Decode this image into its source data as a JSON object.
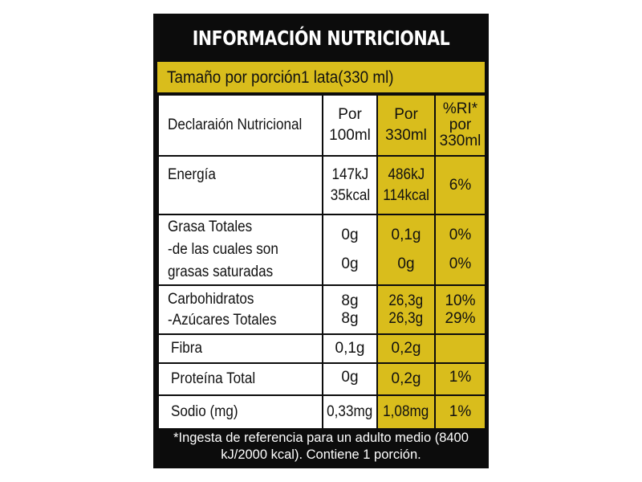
{
  "title": "INFORMACIÓN NUTRICIONAL",
  "serving": "Tamaño por porción1 lata(330 ml)",
  "header": {
    "label": "Declaraión Nutricional",
    "per100_line1": "Por",
    "per100_line2": "100ml",
    "per330_line1": "Por",
    "per330_line2": "330ml",
    "ri_line1": "%RI*",
    "ri_line2": "por",
    "ri_line3": "330ml"
  },
  "rows": {
    "energia": {
      "label": "Energía",
      "per100_1": "147kJ",
      "per100_2": "35kcal",
      "per330_1": "486kJ",
      "per330_2": "114kcal",
      "ri": "6%"
    },
    "grasa": {
      "label_1": "Grasa Totales",
      "label_2": "-de las cuales son",
      "label_3": "grasas saturadas",
      "per100_1": "0g",
      "per100_2": "0g",
      "per330_1": "0,1g",
      "per330_2": "0g",
      "ri_1": "0%",
      "ri_2": "0%"
    },
    "carbohidratos": {
      "label_1": "Carbohidratos",
      "label_2": "-Azúcares Totales",
      "per100_1": "8g",
      "per100_2": "8g",
      "per330_1": "26,3g",
      "per330_2": "26,3g",
      "ri_1": "10%",
      "ri_2": "29%"
    },
    "fibra": {
      "label": "Fibra",
      "per100": "0,1g",
      "per330": "0,2g",
      "ri": ""
    },
    "proteina": {
      "label": "Proteína Total",
      "per100": "0g",
      "per330": "0,2g",
      "ri": "1%"
    },
    "sodio": {
      "label": "Sodio (mg)",
      "per100": "0,33mg",
      "per330": "1,08mg",
      "ri": "1%"
    }
  },
  "footnote_1": "*Ingesta de referencia para un adulto medio (8400",
  "footnote_2": "kJ/2000 kcal). Contiene 1 porción.",
  "colors": {
    "panel": "#0c0c0c",
    "highlight": "#d9bd1c",
    "cell": "#ffffff"
  }
}
